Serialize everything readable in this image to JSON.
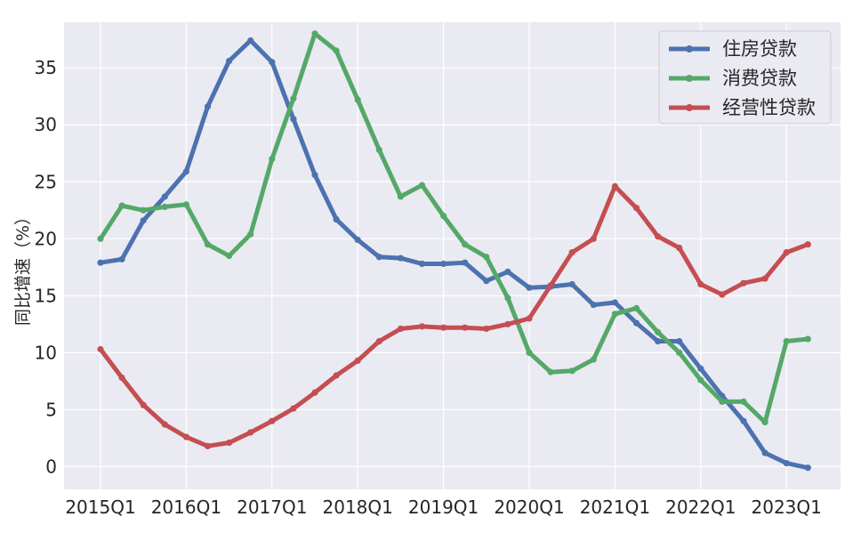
{
  "chart_data": {
    "type": "line",
    "title": "",
    "xlabel": "",
    "ylabel": "同比增速（%）",
    "ylim": [
      -2,
      39
    ],
    "yticks": [
      0,
      5,
      10,
      15,
      20,
      25,
      30,
      35
    ],
    "grid": true,
    "legend_position": "top-right",
    "x": [
      "2015Q1",
      "2015Q2",
      "2015Q3",
      "2015Q4",
      "2016Q1",
      "2016Q2",
      "2016Q3",
      "2016Q4",
      "2017Q1",
      "2017Q2",
      "2017Q3",
      "2017Q4",
      "2018Q1",
      "2018Q2",
      "2018Q3",
      "2018Q4",
      "2019Q1",
      "2019Q2",
      "2019Q3",
      "2019Q4",
      "2020Q1",
      "2020Q2",
      "2020Q3",
      "2020Q4",
      "2021Q1",
      "2021Q2",
      "2021Q3",
      "2021Q4",
      "2022Q1",
      "2022Q2",
      "2022Q3",
      "2022Q4",
      "2023Q1",
      "2023Q2"
    ],
    "xticks": [
      "2015Q1",
      "2016Q1",
      "2017Q1",
      "2018Q1",
      "2019Q1",
      "2020Q1",
      "2021Q1",
      "2022Q1",
      "2023Q1"
    ],
    "series": [
      {
        "name": "住房贷款",
        "color": "#4c72b0",
        "values": [
          17.9,
          18.2,
          21.6,
          23.7,
          25.9,
          31.6,
          35.6,
          37.4,
          35.5,
          30.5,
          25.6,
          21.7,
          19.9,
          18.4,
          18.3,
          17.8,
          17.8,
          17.9,
          16.3,
          17.1,
          15.7,
          15.8,
          16.0,
          14.2,
          14.4,
          12.6,
          11.0,
          11.0,
          8.6,
          6.2,
          4.0,
          1.2,
          0.3,
          -0.1
        ]
      },
      {
        "name": "消费贷款",
        "color": "#55a868",
        "values": [
          20.0,
          22.9,
          22.5,
          22.8,
          23.0,
          19.5,
          18.5,
          20.4,
          27.0,
          32.3,
          38.0,
          36.5,
          32.2,
          27.8,
          23.7,
          24.7,
          22.0,
          19.5,
          18.4,
          14.8,
          10.0,
          8.3,
          8.4,
          9.4,
          13.4,
          13.9,
          11.8,
          10.0,
          7.6,
          5.7,
          5.7,
          3.9,
          11.0,
          11.2
        ]
      },
      {
        "name": "经营性贷款",
        "color": "#c44e52",
        "values": [
          10.3,
          7.8,
          5.4,
          3.7,
          2.6,
          1.8,
          2.1,
          3.0,
          4.0,
          5.1,
          6.5,
          8.0,
          9.3,
          11.0,
          12.1,
          12.3,
          12.2,
          12.2,
          12.1,
          12.5,
          13.0,
          15.9,
          18.8,
          20.0,
          24.6,
          22.7,
          20.2,
          19.2,
          16.0,
          15.1,
          16.1,
          16.5,
          18.8,
          19.5
        ]
      }
    ]
  }
}
